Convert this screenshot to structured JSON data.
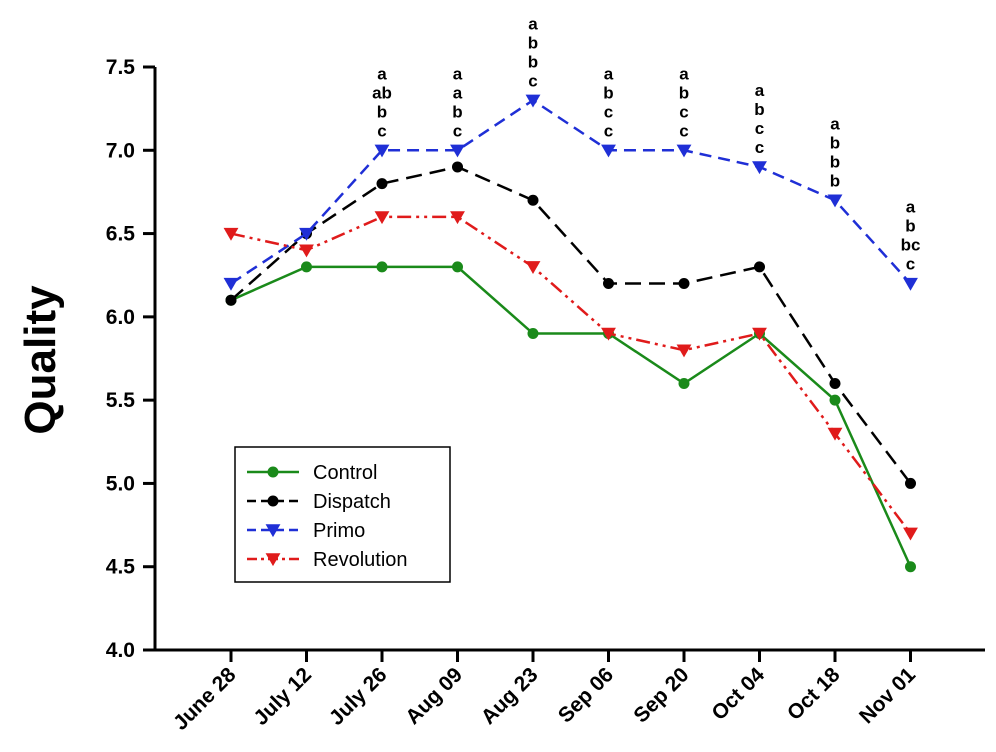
{
  "chart_data": {
    "type": "line",
    "title": "",
    "xlabel": "",
    "ylabel": "Quality",
    "ylim": [
      4.0,
      7.5
    ],
    "yticks": [
      "4.0",
      "4.5",
      "5.0",
      "5.5",
      "6.0",
      "6.5",
      "7.0",
      "7.5"
    ],
    "categories": [
      "June 28",
      "July 12",
      "July 26",
      "Aug 09",
      "Aug 23",
      "Sep 06",
      "Sep 20",
      "Oct 04",
      "Oct 18",
      "Nov 01"
    ],
    "grid": false,
    "legend_position": "bottom-left",
    "series": [
      {
        "name": "Control",
        "color": "#1a8a1a",
        "marker": "circle",
        "dash": "solid",
        "values": [
          6.1,
          6.3,
          6.3,
          6.3,
          5.9,
          5.9,
          5.6,
          5.9,
          5.5,
          4.5
        ]
      },
      {
        "name": "Dispatch",
        "color": "#000000",
        "marker": "circle",
        "dash": "long-dash",
        "values": [
          6.1,
          6.5,
          6.8,
          6.9,
          6.7,
          6.2,
          6.2,
          6.3,
          5.6,
          5.0
        ]
      },
      {
        "name": "Primo",
        "color": "#1f2fd6",
        "marker": "triangle-down",
        "dash": "dash",
        "values": [
          6.2,
          6.5,
          7.0,
          7.0,
          7.3,
          7.0,
          7.0,
          6.9,
          6.7,
          6.2
        ]
      },
      {
        "name": "Revolution",
        "color": "#e01b1b",
        "marker": "triangle-down",
        "dash": "dash-dot-dot",
        "values": [
          6.5,
          6.4,
          6.6,
          6.6,
          6.3,
          5.9,
          5.8,
          5.9,
          5.3,
          4.7
        ]
      }
    ],
    "annotations": [
      {
        "category": "July 26",
        "letters": [
          "a",
          "ab",
          "b",
          "c"
        ]
      },
      {
        "category": "Aug 09",
        "letters": [
          "a",
          "a",
          "b",
          "c"
        ]
      },
      {
        "category": "Aug 23",
        "letters": [
          "a",
          "b",
          "b",
          "c"
        ]
      },
      {
        "category": "Sep 06",
        "letters": [
          "a",
          "b",
          "c",
          "c"
        ]
      },
      {
        "category": "Sep 20",
        "letters": [
          "a",
          "b",
          "c",
          "c"
        ]
      },
      {
        "category": "Oct 04",
        "letters": [
          "a",
          "b",
          "c",
          "c"
        ]
      },
      {
        "category": "Oct 18",
        "letters": [
          "a",
          "b",
          "b",
          "b"
        ]
      },
      {
        "category": "Nov 01",
        "letters": [
          "a",
          "b",
          "bc",
          "c"
        ]
      }
    ]
  }
}
